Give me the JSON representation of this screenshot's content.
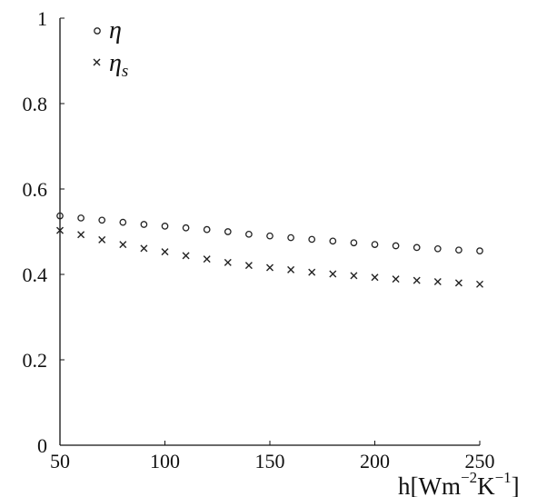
{
  "chart_data": {
    "type": "scatter",
    "xlabel": "h[Wm⁻²K⁻¹]",
    "xlabel_parts": {
      "base": "h[Wm",
      "exp1": "−2",
      "mid": "K",
      "exp2": "−1",
      "end": "]"
    },
    "ylabel": "",
    "xlim": [
      50,
      250
    ],
    "ylim": [
      0,
      1
    ],
    "xticks": [
      50,
      100,
      150,
      200,
      250
    ],
    "yticks": [
      0,
      0.2,
      0.4,
      0.6,
      0.8,
      1
    ],
    "ytick_labels": [
      "0",
      "0.2",
      "0.4",
      "0.6",
      "0.8",
      "1"
    ],
    "grid": false,
    "legend_position": "top-left",
    "x": [
      50,
      60,
      70,
      80,
      90,
      100,
      110,
      120,
      130,
      140,
      150,
      160,
      170,
      180,
      190,
      200,
      210,
      220,
      230,
      240,
      250
    ],
    "series": [
      {
        "name": "η",
        "marker": "circle",
        "values": [
          0.537,
          0.532,
          0.527,
          0.522,
          0.517,
          0.513,
          0.509,
          0.505,
          0.5,
          0.494,
          0.49,
          0.486,
          0.482,
          0.478,
          0.474,
          0.47,
          0.467,
          0.463,
          0.46,
          0.457,
          0.455
        ]
      },
      {
        "name": "η",
        "subscript": "s",
        "marker": "cross",
        "values": [
          0.503,
          0.493,
          0.481,
          0.47,
          0.461,
          0.453,
          0.444,
          0.436,
          0.428,
          0.421,
          0.416,
          0.411,
          0.405,
          0.401,
          0.397,
          0.393,
          0.389,
          0.386,
          0.383,
          0.38,
          0.377
        ]
      }
    ]
  },
  "colors": {
    "axis": "#111111",
    "markers": "#222222"
  }
}
